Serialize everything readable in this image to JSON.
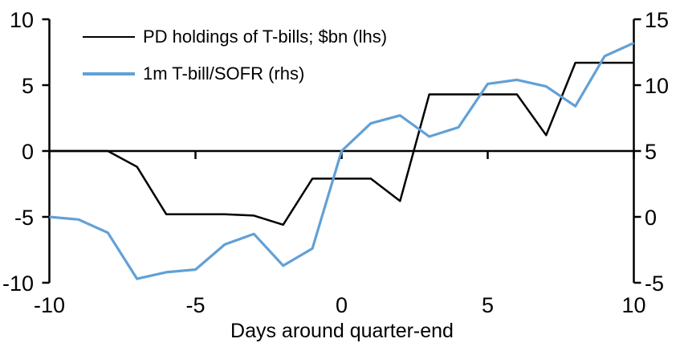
{
  "chart_data": {
    "type": "line",
    "title": "",
    "xlabel": "Days around quarter-end",
    "grid": false,
    "legend_position": "top-left",
    "x": [
      -10,
      -9,
      -8,
      -7,
      -6,
      -5,
      -4,
      -3,
      -2,
      -1,
      0,
      1,
      2,
      3,
      4,
      5,
      6,
      7,
      8,
      9,
      10
    ],
    "series": [
      {
        "name": "PD holdings of T-bills; $bn (lhs)",
        "axis": "lhs",
        "color": "#000000",
        "stroke_width": 2.5,
        "values": [
          0,
          0,
          0,
          -1.2,
          -4.8,
          -4.8,
          -4.8,
          -4.9,
          -5.6,
          -2.1,
          -2.1,
          -2.1,
          -3.8,
          4.3,
          4.3,
          4.3,
          4.3,
          1.2,
          6.7,
          6.7,
          6.7
        ]
      },
      {
        "name": "1m T-bill/SOFR (rhs)",
        "axis": "rhs",
        "color": "#62A0D6",
        "stroke_width": 3.2,
        "values": [
          0.0,
          -0.2,
          -1.2,
          -4.7,
          -4.2,
          -4.0,
          -2.1,
          -1.3,
          -3.7,
          -2.4,
          5.0,
          7.1,
          7.7,
          6.1,
          6.8,
          10.1,
          10.4,
          9.9,
          8.4,
          12.2,
          13.2
        ]
      }
    ],
    "axes": {
      "lhs": {
        "range": [
          -10,
          10
        ],
        "ticks": [
          10,
          5,
          0,
          -5,
          -10
        ]
      },
      "rhs": {
        "range": [
          -5,
          15
        ],
        "ticks": [
          15,
          10,
          5,
          0,
          -5
        ]
      },
      "x": {
        "range": [
          -10,
          10
        ],
        "ticks": [
          -10,
          -5,
          0,
          5,
          10
        ]
      }
    },
    "axis_color": "#000000",
    "zero_line_lhs": 0
  }
}
